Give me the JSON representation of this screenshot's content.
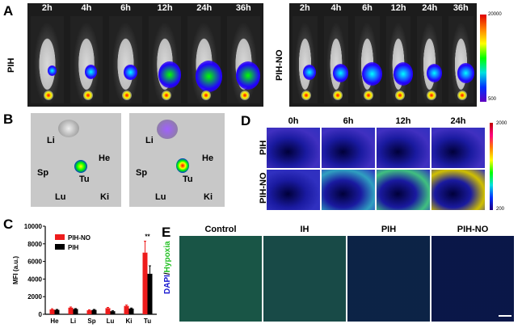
{
  "panel_a": {
    "label": "A",
    "timepoints": [
      "2h",
      "4h",
      "6h",
      "12h",
      "24h",
      "36h"
    ],
    "groups": [
      "PIH",
      "PIH-NO"
    ],
    "colorbar": {
      "max": "20000",
      "min": "500"
    }
  },
  "panel_b": {
    "label": "B",
    "organs": [
      "Li",
      "He",
      "Sp",
      "Tu",
      "Lu",
      "Ki"
    ]
  },
  "panel_d": {
    "label": "D",
    "timepoints": [
      "0h",
      "6h",
      "12h",
      "24h"
    ],
    "groups": [
      "PIH",
      "PIH-NO"
    ],
    "colorbar": {
      "max": "2000",
      "min": "200"
    }
  },
  "panel_e": {
    "label": "E",
    "columns": [
      "Control",
      "IH",
      "PIH",
      "PIH-NO"
    ],
    "ylabel_dapi": "DAPI",
    "ylabel_sep": "/",
    "ylabel_hypoxia": "Hypoxia"
  },
  "chart_data": {
    "label": "C",
    "type": "bar",
    "categories": [
      "He",
      "Li",
      "Sp",
      "Lu",
      "Ki",
      "Tu"
    ],
    "ylabel": "MFI (a.u.)",
    "ylim": [
      0,
      10000
    ],
    "yticks": [
      "0",
      "2000",
      "4000",
      "6000",
      "8000",
      "10000"
    ],
    "legend_position": "top-left",
    "series": [
      {
        "name": "PIH-NO",
        "color": "#ee1c1c",
        "values": [
          550,
          750,
          450,
          700,
          950,
          7000
        ],
        "errors": [
          80,
          80,
          60,
          80,
          100,
          1300
        ]
      },
      {
        "name": "PIH",
        "color": "#000000",
        "values": [
          500,
          600,
          500,
          350,
          650,
          4600
        ],
        "errors": [
          50,
          50,
          50,
          50,
          60,
          900
        ]
      }
    ],
    "annotations": [
      {
        "category": "Tu",
        "text": "**"
      }
    ]
  }
}
